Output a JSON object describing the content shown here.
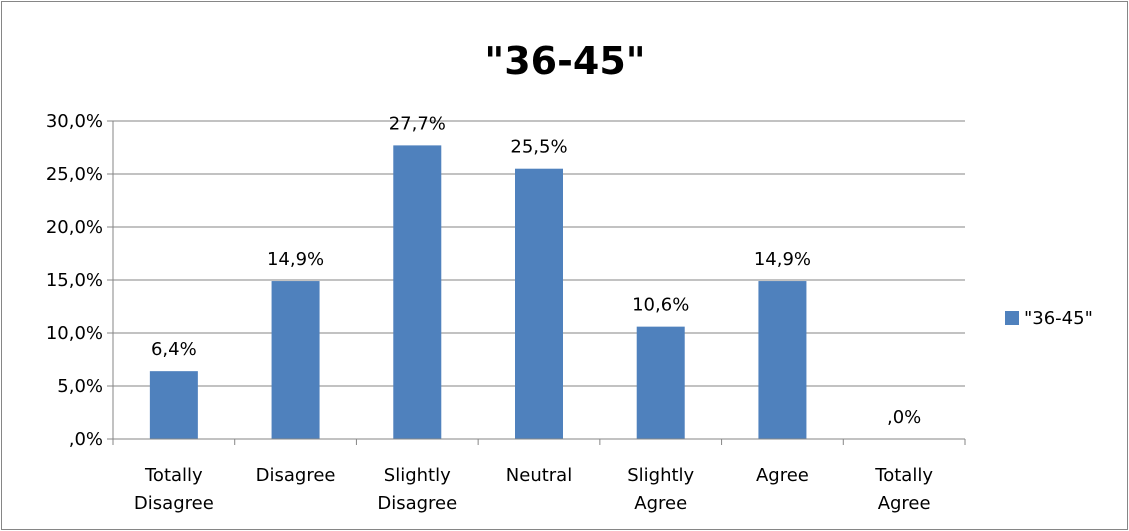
{
  "chart_data": {
    "type": "bar",
    "title": "\"36-45\"",
    "categories": [
      [
        "Totally",
        "Disagree"
      ],
      [
        "Disagree"
      ],
      [
        "Slightly",
        "Disagree"
      ],
      [
        "Neutral"
      ],
      [
        "Slightly",
        "Agree"
      ],
      [
        "Agree"
      ],
      [
        "Totally",
        "Agree"
      ]
    ],
    "series": [
      {
        "name": "\"36-45\"",
        "values": [
          6.4,
          14.9,
          27.7,
          25.5,
          10.6,
          14.9,
          0.0
        ],
        "color": "#4F81BD"
      }
    ],
    "data_labels": [
      "6,4%",
      "14,9%",
      "27,7%",
      "25,5%",
      "10,6%",
      "14,9%",
      ",0%"
    ],
    "ylim": [
      0,
      30
    ],
    "yticks": [
      0,
      5,
      10,
      15,
      20,
      25,
      30
    ],
    "ytick_labels": [
      ",0%",
      "5,0%",
      "10,0%",
      "15,0%",
      "20,0%",
      "25,0%",
      "30,0%"
    ],
    "grid": true,
    "legend": "right"
  }
}
